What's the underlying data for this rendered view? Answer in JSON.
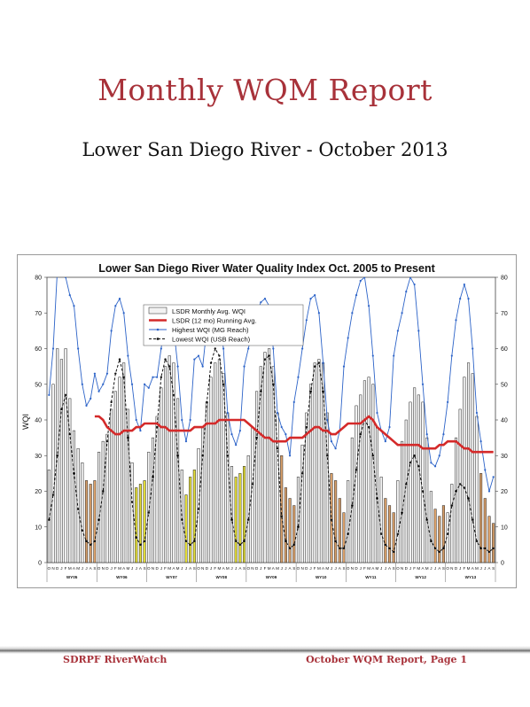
{
  "header": {
    "title": "Monthly WQM Report",
    "subtitle": "Lower San Diego River - October 2013"
  },
  "footer": {
    "left": "SDRPF RiverWatch",
    "right": "October WQM Report, Page 1"
  },
  "chart_data": {
    "type": "bar",
    "title": "Lower San Diego River Water Quality Index Oct. 2005 to Present",
    "ylabel": "WQI",
    "ylim": [
      0,
      80
    ],
    "yticks": [
      0,
      10,
      20,
      30,
      40,
      50,
      60,
      70,
      80
    ],
    "legend_position": "top-left",
    "month_letters": "ONDJFMAMJJAS",
    "water_years": [
      "WY05",
      "WY06",
      "WY07",
      "WY08",
      "WY09",
      "WY10",
      "WY11",
      "WY12",
      "WY13"
    ],
    "months": [
      "Oct 2005",
      "Nov 2005",
      "Dec 2005",
      "Jan 2006",
      "Feb 2006",
      "Mar 2006",
      "Apr 2006",
      "May 2006",
      "Jun 2006",
      "Jul 2006",
      "Aug 2006",
      "Sep 2006",
      "Oct 2006",
      "Nov 2006",
      "Dec 2006",
      "Jan 2007",
      "Feb 2007",
      "Mar 2007",
      "Apr 2007",
      "May 2007",
      "Jun 2007",
      "Jul 2007",
      "Aug 2007",
      "Sep 2007",
      "Oct 2007",
      "Nov 2007",
      "Dec 2007",
      "Jan 2008",
      "Feb 2008",
      "Mar 2008",
      "Apr 2008",
      "May 2008",
      "Jun 2008",
      "Jul 2008",
      "Aug 2008",
      "Sep 2008",
      "Oct 2008",
      "Nov 2008",
      "Dec 2008",
      "Jan 2009",
      "Feb 2009",
      "Mar 2009",
      "Apr 2009",
      "May 2009",
      "Jun 2009",
      "Jul 2009",
      "Aug 2009",
      "Sep 2009",
      "Oct 2009",
      "Nov 2009",
      "Dec 2009",
      "Jan 2010",
      "Feb 2010",
      "Mar 2010",
      "Apr 2010",
      "May 2010",
      "Jun 2010",
      "Jul 2010",
      "Aug 2010",
      "Sep 2010",
      "Oct 2010",
      "Nov 2010",
      "Dec 2010",
      "Jan 2011",
      "Feb 2011",
      "Mar 2011",
      "Apr 2011",
      "May 2011",
      "Jun 2011",
      "Jul 2011",
      "Aug 2011",
      "Sep 2011",
      "Oct 2011",
      "Nov 2011",
      "Dec 2011",
      "Jan 2012",
      "Feb 2012",
      "Mar 2012",
      "Apr 2012",
      "May 2012",
      "Jun 2012",
      "Jul 2012",
      "Aug 2012",
      "Sep 2012",
      "Oct 2012",
      "Nov 2012",
      "Dec 2012",
      "Jan 2013",
      "Feb 2013",
      "Mar 2013",
      "Apr 2013",
      "May 2013",
      "Jun 2013",
      "Jul 2013",
      "Aug 2013",
      "Sep 2013",
      "Oct 2013",
      "Nov 2013",
      "Dec 2013",
      "Jan 2014",
      "Feb 2014",
      "Mar 2014",
      "Apr 2014",
      "May 2014",
      "Jun 2014",
      "Jul 2014",
      "Aug 2014",
      "Sep 2014"
    ],
    "series": [
      {
        "name": "LSDR Monthly Avg. WQI",
        "kind": "bar",
        "color": "#f2f2f2",
        "values": [
          26,
          50,
          60,
          57,
          60,
          46,
          37,
          32,
          28,
          23,
          22,
          23,
          31,
          34,
          36,
          43,
          48,
          52,
          56,
          43,
          28,
          21,
          22,
          23,
          31,
          35,
          41,
          49,
          55,
          58,
          56,
          46,
          26,
          19,
          24,
          26,
          32,
          38,
          45,
          52,
          56,
          57,
          53,
          42,
          27,
          24,
          25,
          27,
          30,
          38,
          48,
          55,
          59,
          60,
          55,
          42,
          30,
          21,
          18,
          16,
          24,
          33,
          42,
          50,
          56,
          57,
          56,
          42,
          25,
          23,
          18,
          14,
          23,
          35,
          44,
          47,
          51,
          52,
          50,
          38,
          24,
          18,
          16,
          14,
          23,
          34,
          40,
          45,
          49,
          47,
          45,
          35,
          20,
          15,
          13,
          16,
          14,
          22,
          35,
          43,
          52,
          56,
          53,
          41,
          25,
          18,
          13,
          11
        ]
      },
      {
        "name": "LSDR (12 mo) Running Avg.",
        "kind": "line",
        "color": "#d42a2a",
        "values": [
          null,
          null,
          null,
          null,
          null,
          null,
          null,
          null,
          null,
          null,
          null,
          41,
          41,
          40,
          38,
          37,
          36,
          36,
          37,
          37,
          37,
          38,
          38,
          39,
          39,
          39,
          39,
          38,
          38,
          37,
          37,
          37,
          37,
          37,
          37,
          38,
          38,
          38,
          39,
          39,
          39,
          40,
          40,
          40,
          40,
          40,
          40,
          40,
          39,
          38,
          37,
          36,
          35,
          35,
          34,
          34,
          34,
          34,
          35,
          35,
          35,
          35,
          36,
          37,
          38,
          38,
          37,
          37,
          36,
          36,
          37,
          38,
          39,
          39,
          39,
          39,
          40,
          41,
          40,
          38,
          37,
          36,
          35,
          34,
          33,
          33,
          33,
          33,
          33,
          33,
          32,
          32,
          32,
          32,
          33,
          33,
          34,
          34,
          34,
          33,
          32,
          32,
          31,
          31,
          31,
          31,
          31,
          31
        ]
      },
      {
        "name": "Highest WQI (MG Reach)",
        "kind": "line",
        "color": "#2c63c8",
        "values": [
          47,
          60,
          82,
          85,
          80,
          75,
          72,
          60,
          50,
          44,
          46,
          53,
          48,
          50,
          53,
          65,
          72,
          74,
          70,
          58,
          50,
          40,
          37,
          50,
          49,
          52,
          52,
          60,
          68,
          70,
          66,
          55,
          40,
          34,
          40,
          57,
          58,
          55,
          66,
          70,
          72,
          70,
          60,
          42,
          36,
          33,
          37,
          55,
          60,
          65,
          70,
          73,
          74,
          72,
          60,
          42,
          38,
          36,
          30,
          45,
          52,
          60,
          68,
          74,
          75,
          70,
          56,
          40,
          34,
          32,
          37,
          55,
          63,
          70,
          75,
          79,
          80,
          72,
          58,
          42,
          37,
          34,
          38,
          58,
          65,
          70,
          76,
          80,
          78,
          65,
          50,
          36,
          28,
          27,
          30,
          36,
          45,
          58,
          68,
          74,
          78,
          74,
          60,
          42,
          34,
          26,
          20,
          24
        ]
      },
      {
        "name": "Lowest WQI (USB Reach)",
        "kind": "line",
        "color": "#111111",
        "values": [
          12,
          19,
          30,
          43,
          47,
          36,
          25,
          15,
          9,
          6,
          5,
          6,
          12,
          20,
          34,
          45,
          53,
          57,
          52,
          35,
          17,
          7,
          5,
          6,
          14,
          24,
          38,
          52,
          57,
          55,
          47,
          30,
          12,
          6,
          5,
          6,
          15,
          30,
          45,
          56,
          60,
          58,
          50,
          30,
          12,
          6,
          5,
          6,
          12,
          22,
          35,
          48,
          57,
          58,
          50,
          32,
          13,
          6,
          4,
          5,
          10,
          25,
          38,
          48,
          55,
          56,
          48,
          30,
          12,
          6,
          4,
          4,
          8,
          16,
          26,
          36,
          40,
          38,
          30,
          18,
          8,
          5,
          4,
          3,
          8,
          14,
          22,
          28,
          30,
          27,
          20,
          12,
          6,
          4,
          3,
          4,
          8,
          16,
          20,
          22,
          21,
          18,
          12,
          6,
          4,
          4,
          3,
          4
        ]
      }
    ]
  }
}
